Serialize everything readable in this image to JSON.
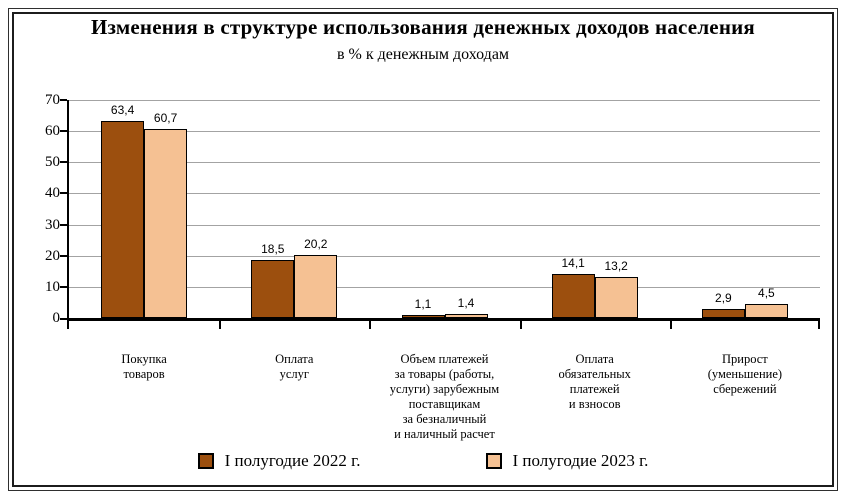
{
  "title": "Изменения в структуре использования денежных доходов населения",
  "subtitle": "в % к денежным доходам",
  "chart_data": {
    "type": "bar",
    "categories": [
      "Покупка\nтоваров",
      "Оплата\nуслуг",
      "Объем платежей\nза товары (работы,\nуслуги) зарубежным\nпоставщикам\nза безналичный\nи наличный расчет",
      "Оплата\nобязательных\nплатежей\nи взносов",
      "Прирост\n(уменьшение)\nсбережений"
    ],
    "series": [
      {
        "name": "I полугодие 2022 г.",
        "color": "#9C4F0E",
        "values": [
          63.4,
          18.5,
          1.1,
          14.1,
          2.9
        ]
      },
      {
        "name": "I полугодие 2023 г.",
        "color": "#F5C193",
        "values": [
          60.7,
          20.2,
          1.4,
          13.2,
          4.5
        ]
      }
    ],
    "value_labels": [
      [
        "63,4",
        "18,5",
        "1,1",
        "14,1",
        "2,9"
      ],
      [
        "60,7",
        "20,2",
        "1,4",
        "13,2",
        "4,5"
      ]
    ],
    "xlabel": "",
    "ylabel": "",
    "ylim": [
      0,
      70
    ],
    "ytick_step": 10,
    "yticks": [
      0,
      10,
      20,
      30,
      40,
      50,
      60,
      70
    ],
    "grid": true,
    "legend_position": "bottom",
    "decimal_separator": ","
  },
  "colors": {
    "grid": "#A3A3A3",
    "axis": "#000000",
    "bar_border": "#000000",
    "text": "#000000",
    "background": "#FFFFFF"
  }
}
